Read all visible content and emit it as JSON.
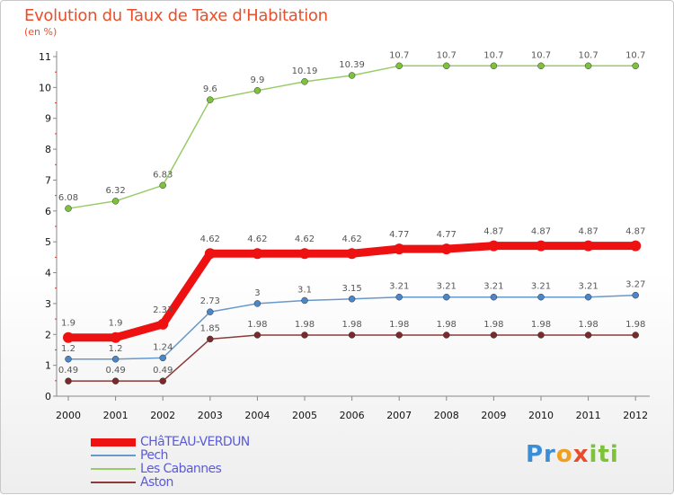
{
  "header": {
    "title": "Evolution du Taux de Taxe d'Habitation",
    "subtitle": "(en %)"
  },
  "logo": {
    "text": "Proxiti"
  },
  "chart_data": {
    "type": "line",
    "title": "Evolution du Taux de Taxe d'Habitation",
    "subtitle": "(en %)",
    "xlabel": "",
    "ylabel": "",
    "x": [
      "2000",
      "2001",
      "2002",
      "2003",
      "2004",
      "2005",
      "2006",
      "2007",
      "2008",
      "2009",
      "2010",
      "2011",
      "2012"
    ],
    "ylim": [
      0,
      11
    ],
    "yticks": [
      0,
      1,
      2,
      3,
      4,
      5,
      6,
      7,
      8,
      9,
      10,
      11
    ],
    "ytick_labels": [
      "0",
      "1",
      "2",
      "3",
      "4",
      "5",
      "6",
      "7",
      "8",
      "9",
      "10",
      "11"
    ],
    "grid": false,
    "legend_position": "bottom-left",
    "series": [
      {
        "name": "Les Cabannes",
        "color": "#99cc66",
        "point_color": "#7cc23a",
        "values": [
          6.08,
          6.32,
          6.83,
          9.6,
          9.9,
          10.19,
          10.39,
          10.7,
          10.7,
          10.7,
          10.7,
          10.7,
          10.7
        ],
        "labels": [
          "6.08",
          "6.32",
          "6.83",
          "9.6",
          "9.9",
          "10.19",
          "10.39",
          "10.7",
          "10.7",
          "10.7",
          "10.7",
          "10.7",
          "10.7"
        ]
      },
      {
        "name": "CHâTEAU-VERDUN",
        "color": "#ee1111",
        "point_color": "#ee1111",
        "values": [
          1.9,
          1.9,
          2.33,
          4.62,
          4.62,
          4.62,
          4.62,
          4.77,
          4.77,
          4.87,
          4.87,
          4.87,
          4.87
        ],
        "labels": [
          "1.9",
          "1.9",
          "2.33",
          "4.62",
          "4.62",
          "4.62",
          "4.62",
          "4.77",
          "4.77",
          "4.87",
          "4.87",
          "4.87",
          "4.87"
        ]
      },
      {
        "name": "Pech",
        "color": "#6699cc",
        "point_color": "#4a86c8",
        "values": [
          1.2,
          1.2,
          1.24,
          2.73,
          3,
          3.1,
          3.15,
          3.21,
          3.21,
          3.21,
          3.21,
          3.21,
          3.27
        ],
        "labels": [
          "1.2",
          "1.2",
          "1.24",
          "2.73",
          "3",
          "3.1",
          "3.15",
          "3.21",
          "3.21",
          "3.21",
          "3.21",
          "3.21",
          "3.27"
        ]
      },
      {
        "name": "Aston",
        "color": "#8b3a3a",
        "point_color": "#7a2a2a",
        "values": [
          0.49,
          0.49,
          0.49,
          1.85,
          1.98,
          1.98,
          1.98,
          1.98,
          1.98,
          1.98,
          1.98,
          1.98,
          1.98
        ],
        "labels": [
          "0.49",
          "0.49",
          "0.49",
          "1.85",
          "1.98",
          "1.98",
          "1.98",
          "1.98",
          "1.98",
          "1.98",
          "1.98",
          "1.98",
          "1.98"
        ]
      }
    ],
    "legend": [
      {
        "name": "CHâTEAU-VERDUN",
        "color": "#ee1111"
      },
      {
        "name": "Pech",
        "color": "#6699cc"
      },
      {
        "name": "Les Cabannes",
        "color": "#99cc66"
      },
      {
        "name": "Aston",
        "color": "#8b3a3a"
      }
    ]
  }
}
